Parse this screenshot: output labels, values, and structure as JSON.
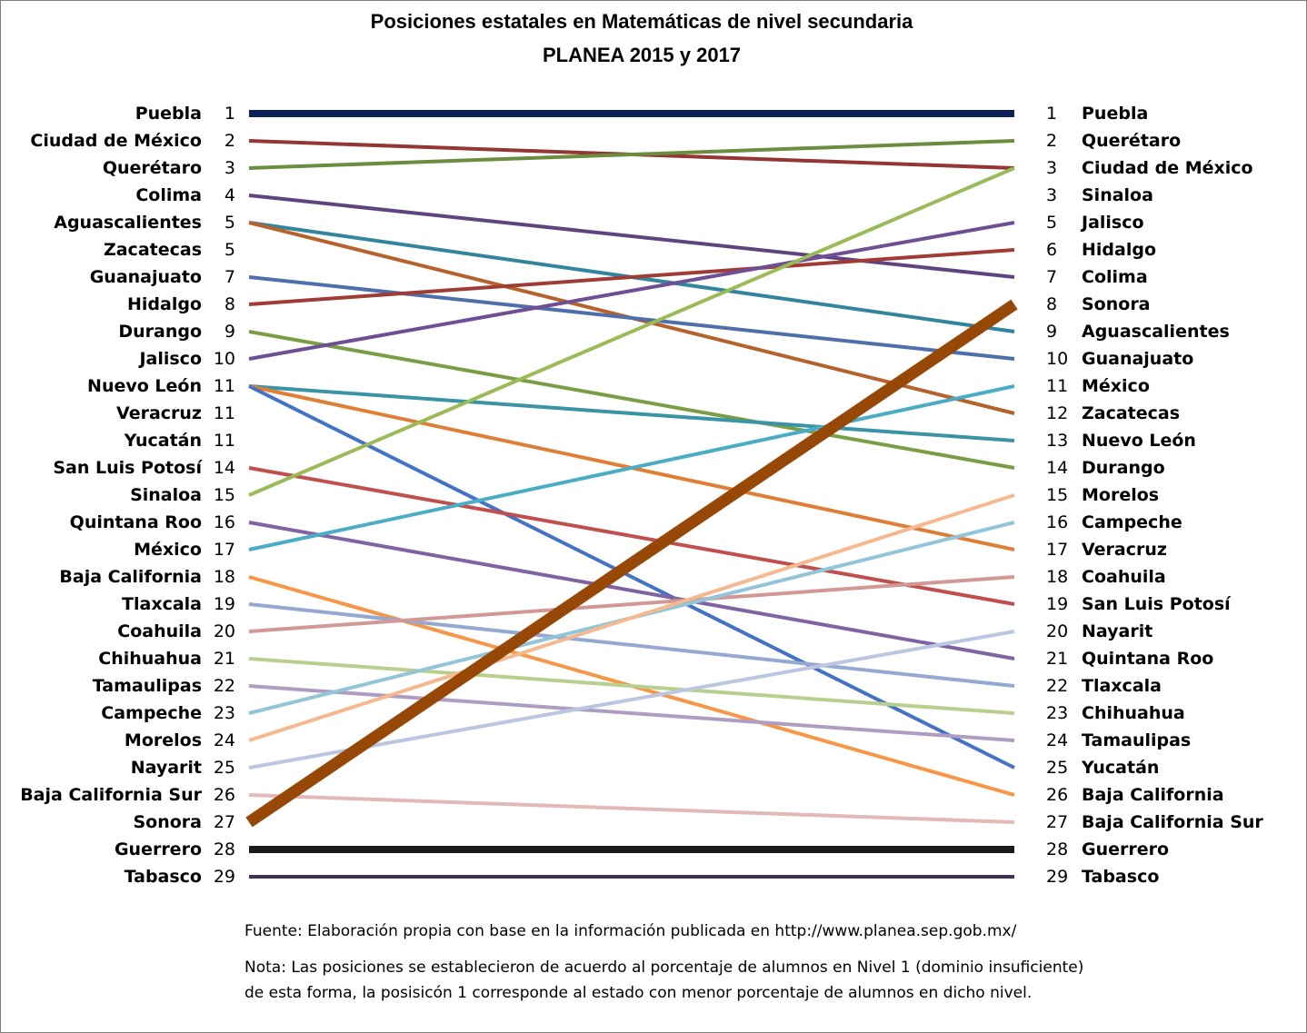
{
  "chart_data": {
    "type": "line",
    "title": "Posiciones estatales en Matemáticas de nivel secundaria",
    "subtitle": "PLANEA 2015 y 2017",
    "x": [
      "2015",
      "2017"
    ],
    "xlabel": "",
    "ylabel": "",
    "ylim": [
      1,
      29
    ],
    "y_reversed": true,
    "grid": false,
    "legend": "none",
    "left_labels": [
      {
        "state": "Puebla",
        "rank": 1
      },
      {
        "state": "Ciudad de México",
        "rank": 2
      },
      {
        "state": "Querétaro",
        "rank": 3
      },
      {
        "state": "Colima",
        "rank": 4
      },
      {
        "state": "Aguascalientes",
        "rank": 5
      },
      {
        "state": "Zacatecas",
        "rank": 5
      },
      {
        "state": "Guanajuato",
        "rank": 7
      },
      {
        "state": "Hidalgo",
        "rank": 8
      },
      {
        "state": "Durango",
        "rank": 9
      },
      {
        "state": "Jalisco",
        "rank": 10
      },
      {
        "state": "Nuevo León",
        "rank": 11
      },
      {
        "state": "Veracruz",
        "rank": 11
      },
      {
        "state": "Yucatán",
        "rank": 11
      },
      {
        "state": "San Luis Potosí",
        "rank": 14
      },
      {
        "state": "Sinaloa",
        "rank": 15
      },
      {
        "state": "Quintana Roo",
        "rank": 16
      },
      {
        "state": "México",
        "rank": 17
      },
      {
        "state": "Baja California",
        "rank": 18
      },
      {
        "state": "Tlaxcala",
        "rank": 19
      },
      {
        "state": "Coahuila",
        "rank": 20
      },
      {
        "state": "Chihuahua",
        "rank": 21
      },
      {
        "state": "Tamaulipas",
        "rank": 22
      },
      {
        "state": "Campeche",
        "rank": 23
      },
      {
        "state": "Morelos",
        "rank": 24
      },
      {
        "state": "Nayarit",
        "rank": 25
      },
      {
        "state": "Baja California Sur",
        "rank": 26
      },
      {
        "state": "Sonora",
        "rank": 27
      },
      {
        "state": "Guerrero",
        "rank": 28
      },
      {
        "state": "Tabasco",
        "rank": 29
      }
    ],
    "right_labels": [
      {
        "state": "Puebla",
        "rank": 1
      },
      {
        "state": "Querétaro",
        "rank": 2
      },
      {
        "state": "Ciudad de México",
        "rank": 3
      },
      {
        "state": "Sinaloa",
        "rank": 3
      },
      {
        "state": "Jalisco",
        "rank": 5
      },
      {
        "state": "Hidalgo",
        "rank": 6
      },
      {
        "state": "Colima",
        "rank": 7
      },
      {
        "state": "Sonora",
        "rank": 8
      },
      {
        "state": "Aguascalientes",
        "rank": 9
      },
      {
        "state": "Guanajuato",
        "rank": 10
      },
      {
        "state": "México",
        "rank": 11
      },
      {
        "state": "Zacatecas",
        "rank": 12
      },
      {
        "state": "Nuevo León",
        "rank": 13
      },
      {
        "state": "Durango",
        "rank": 14
      },
      {
        "state": "Morelos",
        "rank": 15
      },
      {
        "state": "Campeche",
        "rank": 16
      },
      {
        "state": "Veracruz",
        "rank": 17
      },
      {
        "state": "Coahuila",
        "rank": 18
      },
      {
        "state": "San Luis Potosí",
        "rank": 19
      },
      {
        "state": "Nayarit",
        "rank": 20
      },
      {
        "state": "Quintana Roo",
        "rank": 21
      },
      {
        "state": "Tlaxcala",
        "rank": 22
      },
      {
        "state": "Chihuahua",
        "rank": 23
      },
      {
        "state": "Tamaulipas",
        "rank": 24
      },
      {
        "state": "Yucatán",
        "rank": 25
      },
      {
        "state": "Baja California",
        "rank": 26
      },
      {
        "state": "Baja California Sur",
        "rank": 27
      },
      {
        "state": "Guerrero",
        "rank": 28
      },
      {
        "state": "Tabasco",
        "rank": 29
      }
    ],
    "series": [
      {
        "state": "Puebla",
        "from": 1,
        "to": 1,
        "color": "#0d2259",
        "emphasis": "thick"
      },
      {
        "state": "Ciudad de México",
        "from": 2,
        "to": 3,
        "color": "#943634"
      },
      {
        "state": "Querétaro",
        "from": 3,
        "to": 2,
        "color": "#6b8e3e"
      },
      {
        "state": "Colima",
        "from": 4,
        "to": 7,
        "color": "#5f4580"
      },
      {
        "state": "Aguascalientes",
        "from": 5,
        "to": 9,
        "color": "#31859c"
      },
      {
        "state": "Zacatecas",
        "from": 5,
        "to": 12,
        "color": "#b5622d"
      },
      {
        "state": "Guanajuato",
        "from": 7,
        "to": 10,
        "color": "#4f6faa"
      },
      {
        "state": "Hidalgo",
        "from": 8,
        "to": 6,
        "color": "#a03c36"
      },
      {
        "state": "Durango",
        "from": 9,
        "to": 14,
        "color": "#7b9e45"
      },
      {
        "state": "Jalisco",
        "from": 10,
        "to": 5,
        "color": "#6e4f94"
      },
      {
        "state": "Nuevo León",
        "from": 11,
        "to": 13,
        "color": "#3b93a8"
      },
      {
        "state": "Veracruz",
        "from": 11,
        "to": 17,
        "color": "#df7e36"
      },
      {
        "state": "Yucatán",
        "from": 11,
        "to": 25,
        "color": "#4472c4"
      },
      {
        "state": "San Luis Potosí",
        "from": 14,
        "to": 19,
        "color": "#c0504d"
      },
      {
        "state": "Sinaloa",
        "from": 15,
        "to": 3,
        "color": "#9bbb59"
      },
      {
        "state": "Quintana Roo",
        "from": 16,
        "to": 21,
        "color": "#8064a2"
      },
      {
        "state": "México",
        "from": 17,
        "to": 11,
        "color": "#4bacc6"
      },
      {
        "state": "Baja California",
        "from": 18,
        "to": 26,
        "color": "#f79646"
      },
      {
        "state": "Tlaxcala",
        "from": 19,
        "to": 22,
        "color": "#95a8d2"
      },
      {
        "state": "Coahuila",
        "from": 20,
        "to": 18,
        "color": "#d19896"
      },
      {
        "state": "Chihuahua",
        "from": 21,
        "to": 23,
        "color": "#b8cf8e"
      },
      {
        "state": "Tamaulipas",
        "from": 22,
        "to": 24,
        "color": "#ad9dc1"
      },
      {
        "state": "Campeche",
        "from": 23,
        "to": 16,
        "color": "#92c5d8"
      },
      {
        "state": "Morelos",
        "from": 24,
        "to": 15,
        "color": "#f6b88e"
      },
      {
        "state": "Nayarit",
        "from": 25,
        "to": 20,
        "color": "#bcc6e0"
      },
      {
        "state": "Baja California Sur",
        "from": 26,
        "to": 27,
        "color": "#e2b9b8"
      },
      {
        "state": "Sonora",
        "from": 27,
        "to": 8,
        "color": "#974706",
        "emphasis": "extra-thick"
      },
      {
        "state": "Guerrero",
        "from": 28,
        "to": 28,
        "color": "#1a1a1a",
        "emphasis": "thick"
      },
      {
        "state": "Tabasco",
        "from": 29,
        "to": 29,
        "color": "#403152"
      }
    ]
  },
  "footer": {
    "source": "Fuente: Elaboración propia con base en la información publicada en http://www.planea.sep.gob.mx/",
    "note": "Nota: Las posiciones se establecieron de acuerdo al porcentaje de alumnos en Nivel 1 (dominio insuficiente) de esta forma, la posisicón 1 corresponde al estado con menor porcentaje de alumnos en dicho nivel."
  }
}
